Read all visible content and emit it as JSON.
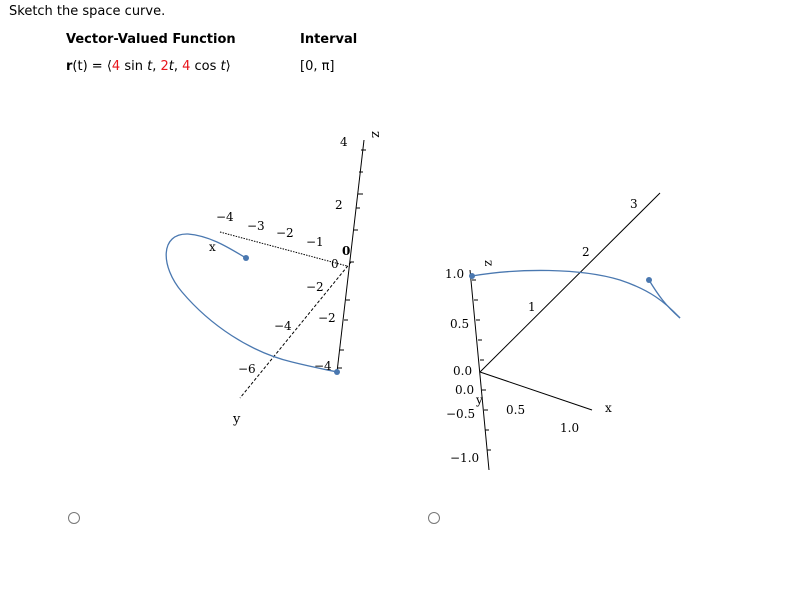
{
  "prompt": "Sketch the space curve.",
  "table": {
    "col_function": "Vector-Valued Function",
    "col_interval": "Interval",
    "function": {
      "r": "r",
      "t_open": "(t)",
      "eq": " = ⟨",
      "c1": "4",
      "sin": " sin ",
      "t1": "t",
      "comma1": ", ",
      "c2": "2",
      "t2": "t",
      "comma2": ", ",
      "c3": "4",
      "cos": " cos ",
      "t3": "t",
      "close": "⟩"
    },
    "interval": "[0, π]"
  },
  "graph_a": {
    "z_axis_label": "z",
    "x_axis_label": "x",
    "y_axis_label": "y",
    "z_ticks": [
      "4",
      "2",
      "0"
    ],
    "x_ticks": [
      "−4",
      "−3",
      "−2",
      "−1"
    ],
    "x_origin": "0",
    "y_ticks": [
      "−2",
      "−4",
      "−6"
    ],
    "z_neg_ticks": [
      "−2",
      "−4"
    ]
  },
  "graph_b": {
    "z_axis_label": "z",
    "x_axis_label": "x",
    "y_axis_label": "y",
    "z_ticks": [
      "1.0",
      "0.5",
      "0.0",
      "−0.5",
      "−1.0"
    ],
    "x_ticks": [
      "0.5",
      "1.0"
    ],
    "y_ticks": [
      "1",
      "2",
      "3"
    ],
    "y_origin": "0.0"
  },
  "colors": {
    "curve": "#4a78b0",
    "accent": "#e8151b"
  }
}
